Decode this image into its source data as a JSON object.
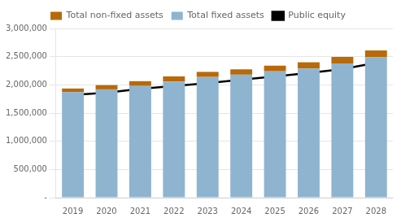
{
  "chart_data": {
    "type": "bar",
    "stacked": true,
    "categories": [
      "2019",
      "2020",
      "2021",
      "2022",
      "2023",
      "2024",
      "2025",
      "2026",
      "2027",
      "2028"
    ],
    "series": [
      {
        "name": "Total fixed assets",
        "color": "#8fb4d0",
        "values": [
          1870000,
          1920000,
          1980000,
          2060000,
          2140000,
          2180000,
          2240000,
          2290000,
          2380000,
          2490000
        ]
      },
      {
        "name": "Total non-fixed assets",
        "color": "#b8690a",
        "values": [
          65000,
          75000,
          85000,
          90000,
          90000,
          95000,
          100000,
          110000,
          115000,
          120000
        ]
      },
      {
        "name": "Public equity",
        "type": "line",
        "color": "#000000",
        "values": [
          1820000,
          1860000,
          1930000,
          1980000,
          2030000,
          2090000,
          2150000,
          2210000,
          2280000,
          2390000
        ]
      }
    ],
    "ylim": [
      0,
      3000000
    ],
    "yticks": [
      {
        "value": 0,
        "label": "-"
      },
      {
        "value": 500000,
        "label": "500,000"
      },
      {
        "value": 1000000,
        "label": "1,000,000"
      },
      {
        "value": 1500000,
        "label": "1,500,000"
      },
      {
        "value": 2000000,
        "label": "2,000,000"
      },
      {
        "value": 2500000,
        "label": "2,500,000"
      },
      {
        "value": 3000000,
        "label": "3,000,000"
      }
    ],
    "grid": true,
    "legend": "top"
  }
}
